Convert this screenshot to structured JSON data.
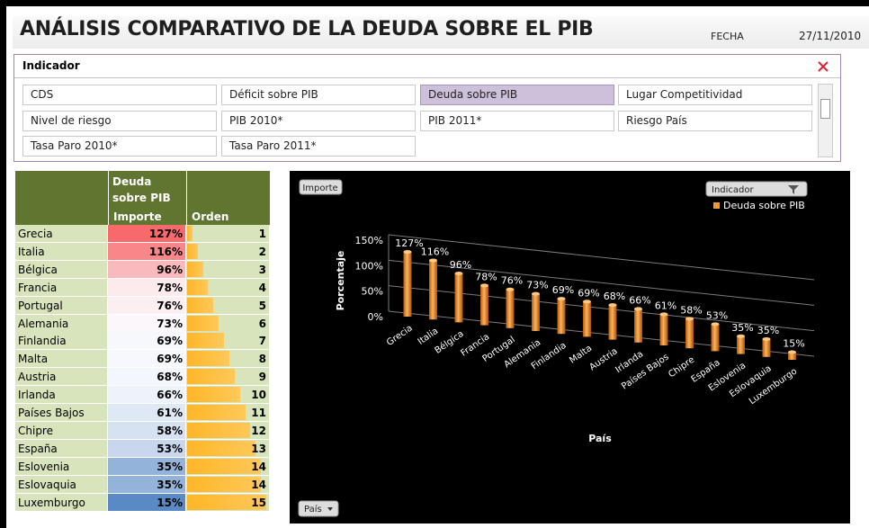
{
  "header": {
    "title": "ANÁLISIS COMPARATIVO DE LA DEUDA SOBRE EL PIB",
    "date_label": "FECHA",
    "date": "27/11/2010"
  },
  "slicer": {
    "title": "Indicador",
    "selected": "Deuda sobre PIB",
    "items": [
      "CDS",
      "Déficit sobre PIB",
      "Deuda sobre PIB",
      "Lugar Competitividad",
      "Nivel de riesgo",
      "PIB 2010*",
      "PIB 2011*",
      "Riesgo País",
      "Tasa Paro 2010*",
      "Tasa Paro 2011*"
    ]
  },
  "table": {
    "group_header": "Deuda sobre PIB",
    "columns": [
      "Importe",
      "Orden"
    ],
    "rows": [
      [
        "Grecia",
        "127%",
        1
      ],
      [
        "Italia",
        "116%",
        2
      ],
      [
        "Bélgica",
        "96%",
        3
      ],
      [
        "Francia",
        "78%",
        4
      ],
      [
        "Portugal",
        "76%",
        5
      ],
      [
        "Alemania",
        "73%",
        6
      ],
      [
        "Finlandia",
        "69%",
        7
      ],
      [
        "Malta",
        "69%",
        8
      ],
      [
        "Austria",
        "68%",
        9
      ],
      [
        "Irlanda",
        "66%",
        10
      ],
      [
        "Países Bajos",
        "61%",
        11
      ],
      [
        "Chipre",
        "58%",
        12
      ],
      [
        "España",
        "53%",
        13
      ],
      [
        "Eslovenia",
        "35%",
        14
      ],
      [
        "Eslovaquia",
        "35%",
        14
      ],
      [
        "Luxemburgo",
        "15%",
        15
      ]
    ]
  },
  "chart_data": {
    "type": "bar",
    "value_button": "Importe",
    "legend_title": "Indicador",
    "axis_button": "País",
    "ylabel": "Porcentaje",
    "xlabel": "País",
    "series": [
      {
        "name": "Deuda sobre PIB",
        "color": "#f39a2e"
      }
    ],
    "categories": [
      "Grecia",
      "Italia",
      "Bélgica",
      "Francia",
      "Portugal",
      "Alemania",
      "Finlandia",
      "Malta",
      "Austria",
      "Irlanda",
      "Países Bajos",
      "Chipre",
      "España",
      "Eslovenia",
      "Eslovaquia",
      "Luxemburgo"
    ],
    "values": [
      127,
      116,
      96,
      78,
      76,
      73,
      69,
      69,
      68,
      66,
      61,
      58,
      53,
      35,
      35,
      15
    ],
    "value_labels": [
      "127%",
      "116%",
      "96%",
      "78%",
      "76%",
      "73%",
      "69%",
      "69%",
      "68%",
      "66%",
      "61%",
      "58%",
      "53%",
      "35%",
      "35%",
      "15%"
    ],
    "ylim": [
      0,
      150
    ],
    "yticks": [
      {
        "value": 0,
        "label": "0%"
      },
      {
        "value": 50,
        "label": "50%"
      },
      {
        "value": 100,
        "label": "100%"
      },
      {
        "value": 150,
        "label": "150%"
      }
    ]
  }
}
